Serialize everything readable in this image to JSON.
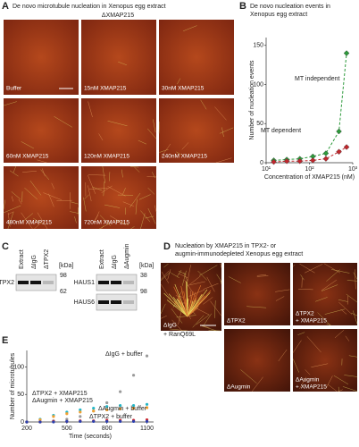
{
  "panelA": {
    "letter": "A",
    "title": "De novo microtubule nucleation in Xenopus egg extract",
    "subtitle": "ΔXMAP215",
    "images": [
      "Buffer",
      "15nM XMAP215",
      "30nM XMAP215",
      "60nM XMAP215",
      "120nM XMAP215",
      "240nM XMAP215",
      "480nM XMAP215",
      "720nM XMAP215"
    ]
  },
  "panelC": {
    "letter": "C",
    "blots": [
      {
        "lanes": [
          "Extract",
          "ΔIgG",
          "ΔTPX2"
        ],
        "unit": "[kDa]",
        "markers": [
          98,
          62
        ],
        "proteins": [
          "TPX2"
        ]
      },
      {
        "lanes": [
          "Extract",
          "ΔIgG",
          "ΔAugmin"
        ],
        "unit": "[kDa]",
        "markers": [
          38,
          98
        ],
        "proteins": [
          "HAUS1",
          "HAUS6"
        ]
      }
    ]
  },
  "panelD": {
    "letter": "D",
    "title": [
      "Nucleation by XMAP215 in TPX2- or",
      "augmin-immunodepleted Xenopus egg extract"
    ],
    "images": [
      [
        "ΔIgG",
        "+ RanQ69L"
      ],
      [
        "ΔTPX2"
      ],
      [
        "ΔTPX2",
        "+ XMAP215"
      ],
      [
        "ΔAugmin"
      ],
      [
        "ΔAugmin",
        "+ XMAP215"
      ]
    ]
  },
  "chart_data": [
    {
      "type": "scatter",
      "letter": "B",
      "title": [
        "De novo nucleation events in",
        "Xenopus egg extract"
      ],
      "xlabel": "Concentration of XMAP215 (nM)",
      "ylabel": "Number of nucleation events",
      "xscale": "log",
      "xlim": [
        10,
        1000
      ],
      "xticks": [
        {
          "value": 10,
          "label": "10¹"
        },
        {
          "value": 100,
          "label": "10²"
        },
        {
          "value": 1000,
          "label": "10³"
        }
      ],
      "ylim": [
        0,
        160
      ],
      "yticks": [
        0,
        50,
        100,
        150
      ],
      "x": [
        15,
        30,
        60,
        120,
        240,
        480,
        720
      ],
      "series": [
        {
          "name": "MT independent",
          "color": "#2e9a3c",
          "values": [
            3,
            4,
            5,
            8,
            12,
            40,
            140
          ]
        },
        {
          "name": "MT dependent",
          "color": "#c0272d",
          "values": [
            1,
            2,
            2,
            3,
            5,
            14,
            20
          ]
        }
      ]
    },
    {
      "type": "scatter",
      "letter": "E",
      "xlabel": "Time (seconds)",
      "ylabel": "Number of microtubules",
      "xlim": [
        200,
        1150
      ],
      "xticks": [
        200,
        500,
        800,
        1100
      ],
      "ylim": [
        0,
        130
      ],
      "yticks": [
        0,
        50,
        100
      ],
      "x": [
        200,
        300,
        400,
        500,
        600,
        700,
        800,
        900,
        1000,
        1100
      ],
      "series": [
        {
          "name": "ΔIgG + buffer",
          "color": "#9a9a9a",
          "values": [
            0,
            0,
            2,
            5,
            10,
            20,
            35,
            55,
            85,
            120
          ]
        },
        {
          "name": "ΔTPX2 + XMAP215",
          "color": "#25b6c8",
          "values": [
            0,
            5,
            12,
            18,
            22,
            25,
            28,
            30,
            30,
            32
          ]
        },
        {
          "name": "ΔAugmin + XMAP215",
          "color": "#f0a030",
          "values": [
            0,
            4,
            10,
            15,
            18,
            20,
            22,
            24,
            25,
            26
          ]
        },
        {
          "name": "ΔAugmin + buffer",
          "color": "#d0262b",
          "values": [
            0,
            0,
            1,
            1,
            2,
            2,
            3,
            3,
            3,
            4
          ]
        },
        {
          "name": "ΔTPX2 + buffer",
          "color": "#2a3fb0",
          "values": [
            0,
            0,
            0,
            1,
            1,
            1,
            1,
            1,
            1,
            1
          ]
        }
      ]
    }
  ]
}
